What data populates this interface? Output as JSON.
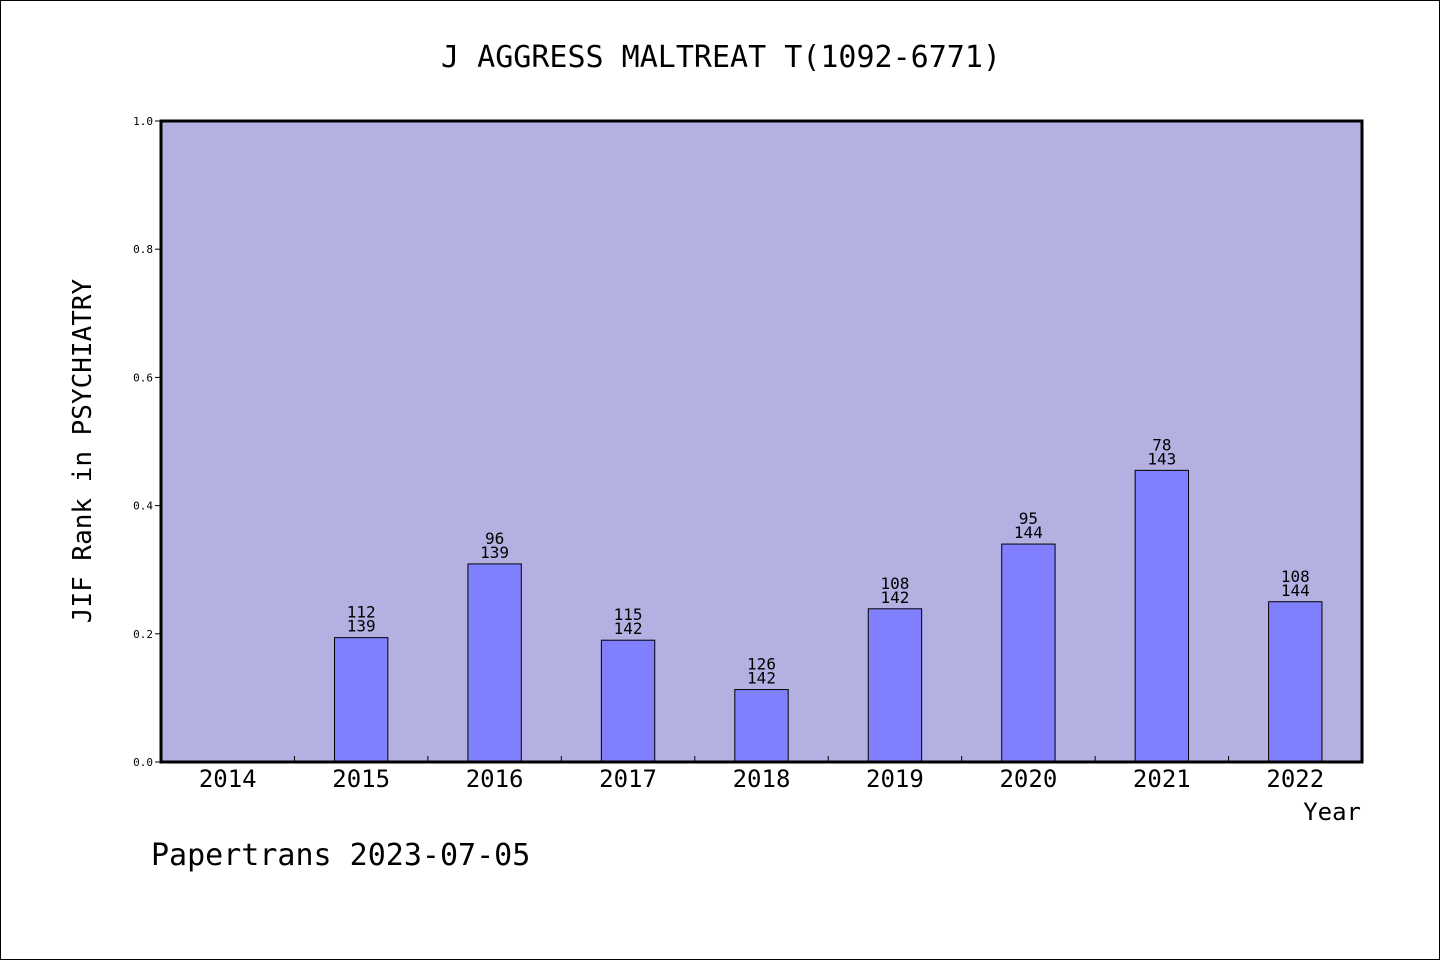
{
  "chart_data": {
    "type": "bar",
    "title": "J AGGRESS MALTREAT T(1092-6771)",
    "xlabel": "Year",
    "ylabel": "JIF Rank in PSYCHIATRY",
    "ylim": [
      0,
      1.0
    ],
    "yticks": [
      "0.0",
      "0.2",
      "0.4",
      "0.6",
      "0.8",
      "1.0"
    ],
    "grid": false,
    "categories": [
      "2014",
      "2015",
      "2016",
      "2017",
      "2018",
      "2019",
      "2020",
      "2021",
      "2022"
    ],
    "values": [
      null,
      0.194,
      0.309,
      0.19,
      0.113,
      0.239,
      0.34,
      0.455,
      0.25
    ],
    "rank": [
      null,
      "112",
      "96",
      "115",
      "126",
      "108",
      "95",
      "78",
      "108"
    ],
    "total": [
      null,
      "139",
      "139",
      "142",
      "142",
      "142",
      "144",
      "143",
      "144"
    ],
    "colors": {
      "plot_background": "#b5b0e2",
      "bar_fill": "#8080ff",
      "bar_stroke": "#000000"
    }
  },
  "footer": "Papertrans 2023-07-05"
}
